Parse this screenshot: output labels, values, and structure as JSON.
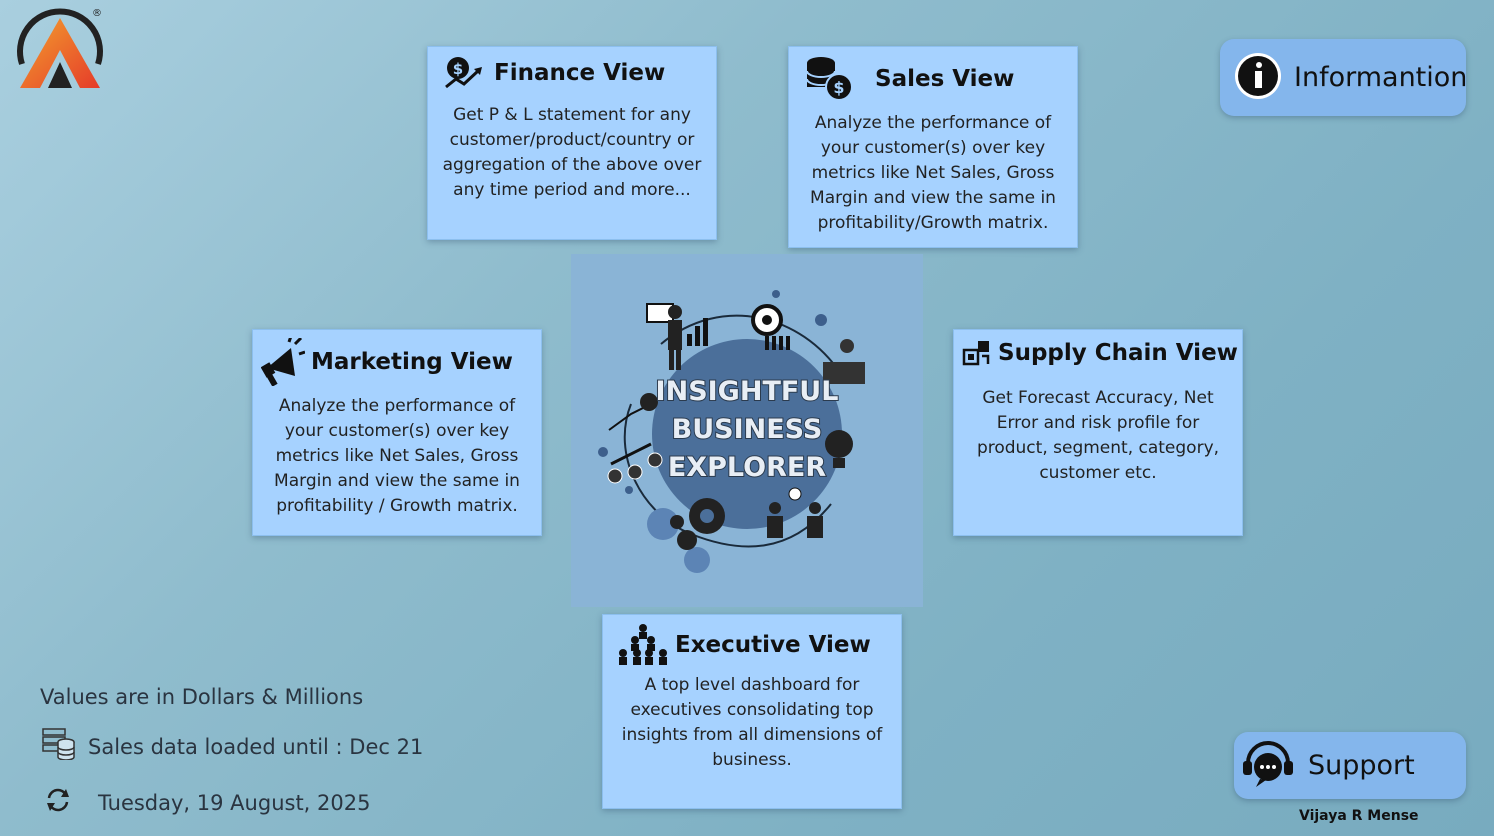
{
  "brand": {
    "logo_icon": "atliq-logo",
    "trademark": "®"
  },
  "cards": {
    "finance": {
      "title": "Finance View",
      "icon": "dollar-chart-icon",
      "description": "Get P & L statement for any customer/product/country or aggregation of the above over any time period and more..."
    },
    "sales": {
      "title": "Sales View",
      "icon": "coins-dollar-icon",
      "description": "Analyze the performance of your customer(s) over key metrics like Net Sales, Gross Margin and view the same in profitability/Growth matrix."
    },
    "marketing": {
      "title": "Marketing View",
      "icon": "megaphone-icon",
      "description": "Analyze the performance of your customer(s) over key metrics like Net Sales, Gross Margin and view the same in profitability / Growth matrix."
    },
    "supply_chain": {
      "title": "Supply Chain View",
      "icon": "supply-chain-icon",
      "description": "Get Forecast Accuracy, Net Error and risk profile for product, segment, category, customer etc."
    },
    "executive": {
      "title": "Executive View",
      "icon": "executive-pyramid-icon",
      "description": "A top level dashboard for executives consolidating top insights from all dimensions of business."
    }
  },
  "center": {
    "line1": "INSIGHTFUL",
    "line2": "BUSINESS",
    "line3": "EXPLORER"
  },
  "buttons": {
    "information": "Informantion",
    "support": "Support"
  },
  "footer": {
    "values_note": "Values are in Dollars & Millions",
    "loaded_until": "Sales data loaded until : Dec 21",
    "date": "Tuesday, 19 August, 2025",
    "author": "Vijaya R Mense"
  },
  "colors": {
    "card_bg": "#a6d2ff",
    "button_bg": "#84b6ec",
    "center_bg": "#8ab4d6",
    "logo_red": "#e8452c",
    "logo_orange": "#f08a2a"
  }
}
